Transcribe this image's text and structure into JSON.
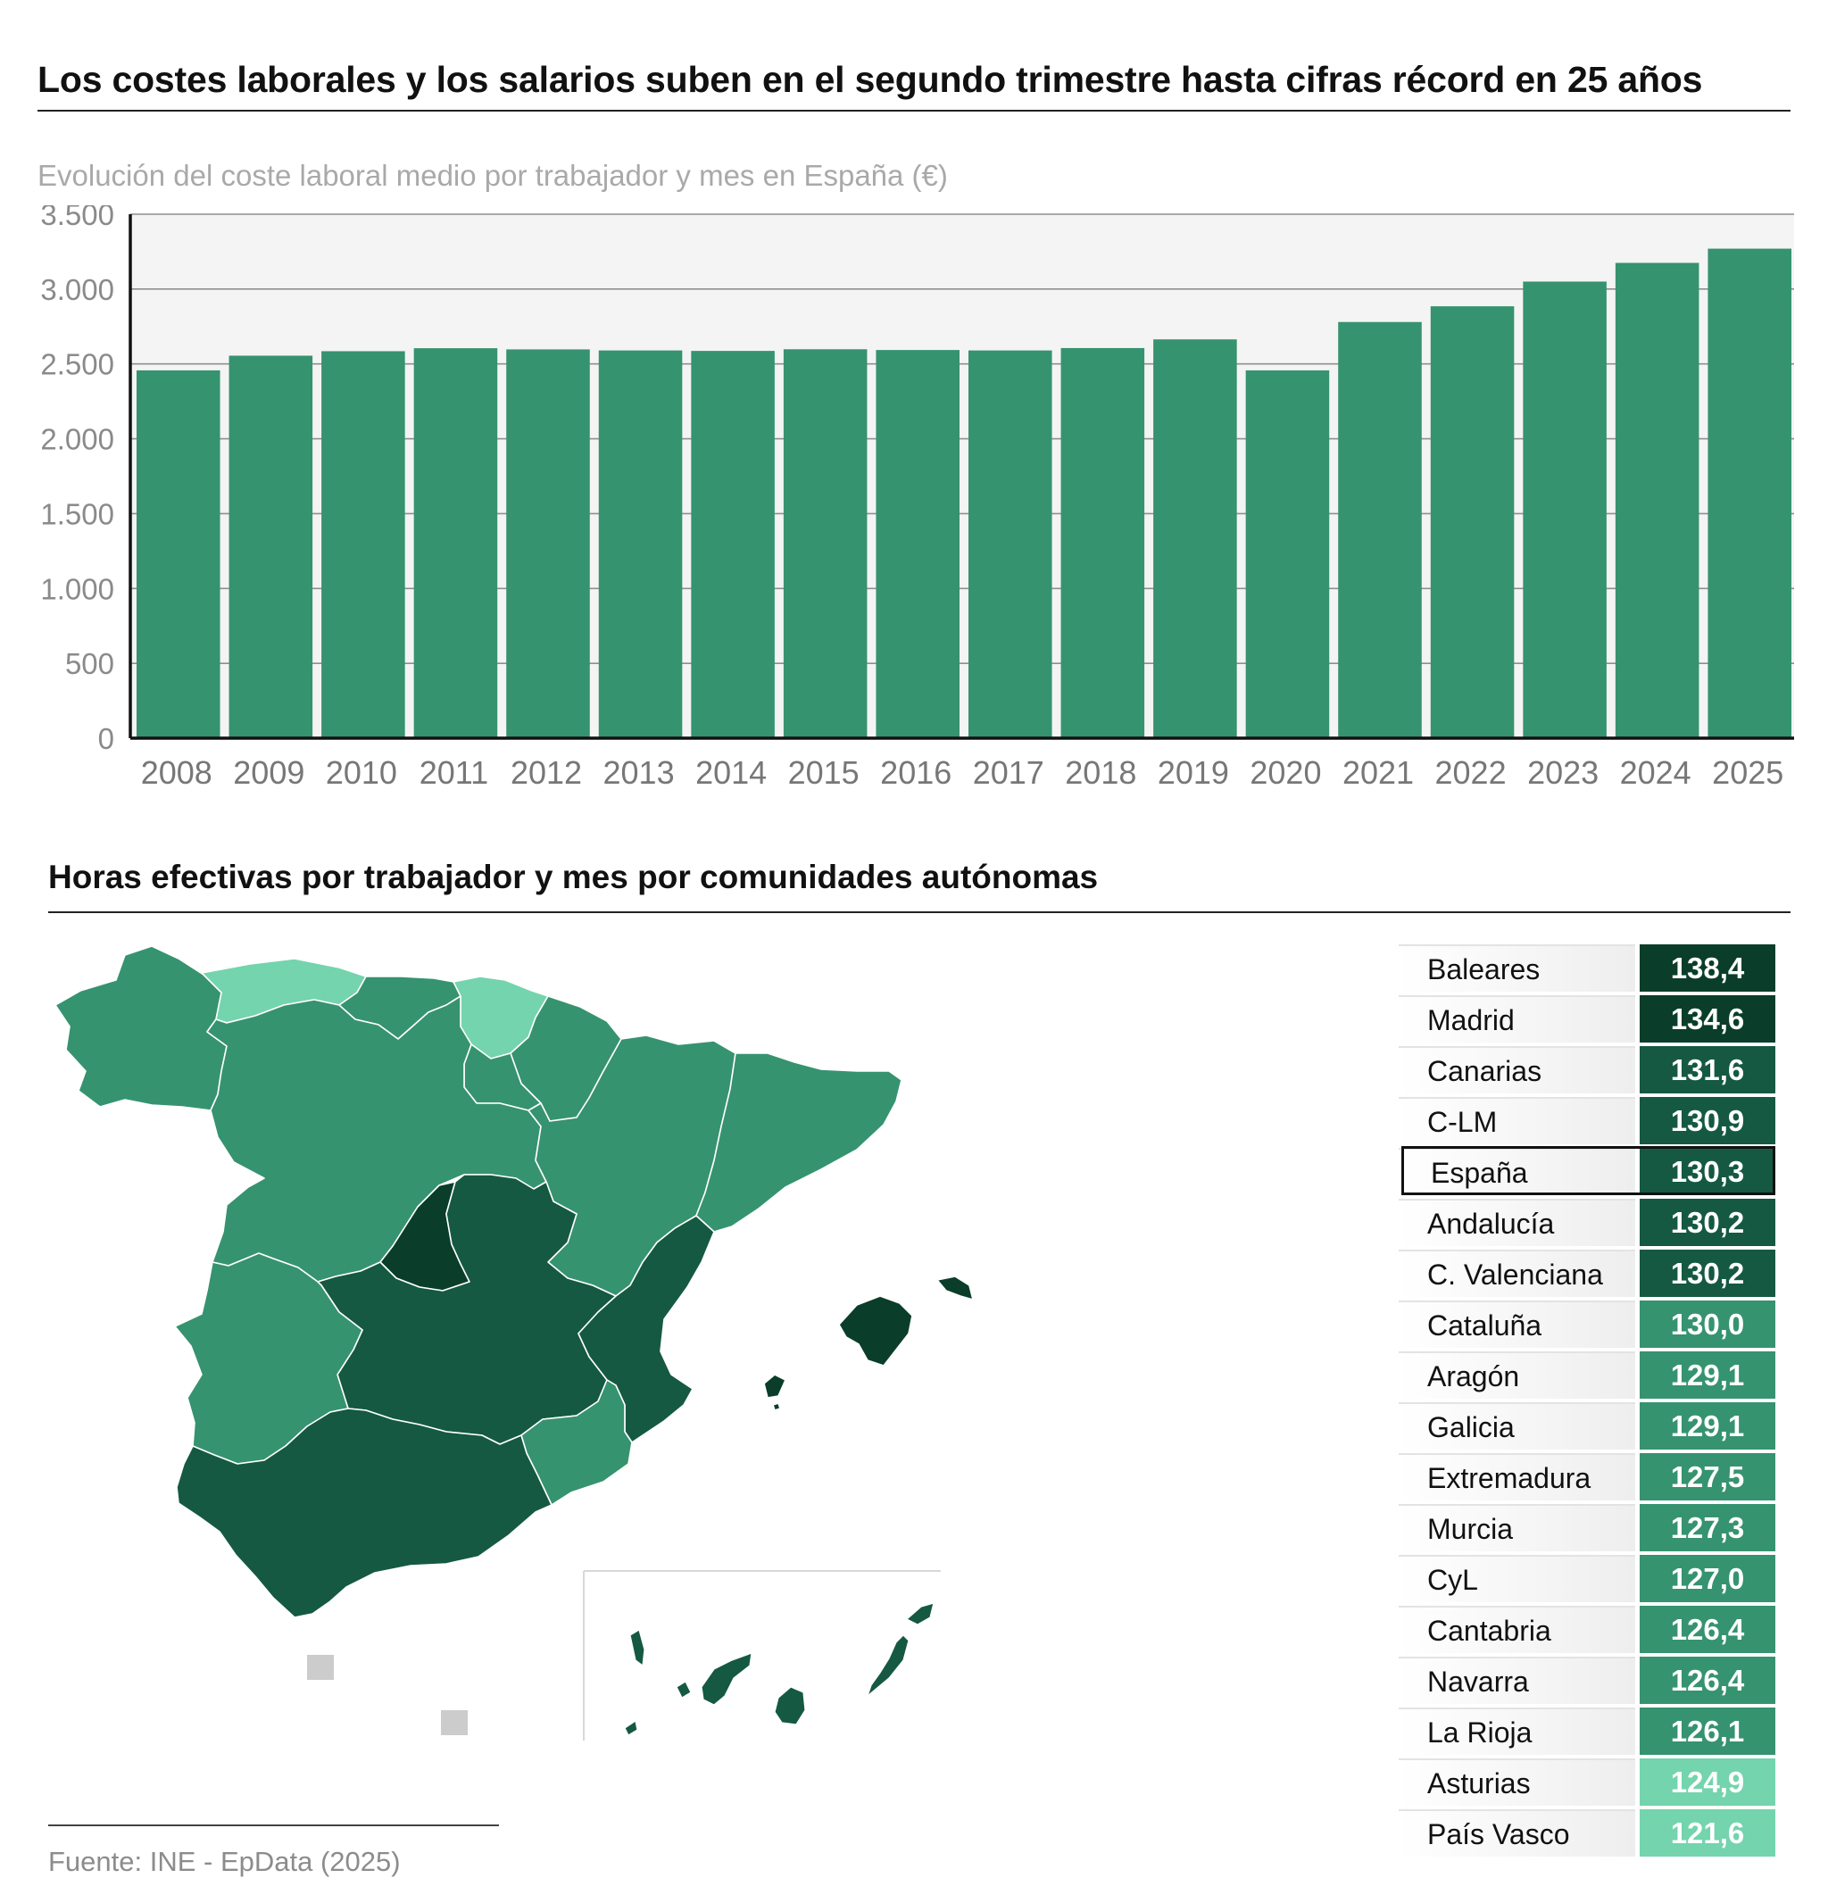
{
  "headline": "Los costes laborales y los salarios suben en el segundo trimestre hasta cifras récord en 25 años",
  "subtitle": "Evolución del coste laboral medio por trabajador y mes en España (€)",
  "map_title": "Horas efectivas por trabajador y mes por comunidades autónomas",
  "source": "Fuente: INE - EpData (2025)",
  "colors": {
    "bar": "#36936f",
    "plot_bg": "#f4f4f4",
    "gridline": "#8f8f8f",
    "tick_label": "#8a8a8a",
    "scale": [
      "#74d4ad",
      "#36936f",
      "#155942",
      "#0a3e2a"
    ]
  },
  "chart_data": {
    "type": "bar",
    "title": "Evolución del coste laboral medio por trabajador y mes en España (€)",
    "categories": [
      "2008",
      "2009",
      "2010",
      "2011",
      "2012",
      "2013",
      "2014",
      "2015",
      "2016",
      "2017",
      "2018",
      "2019",
      "2020",
      "2021",
      "2022",
      "2023",
      "2024",
      "2025"
    ],
    "values": [
      2457,
      2555,
      2585,
      2605,
      2597,
      2590,
      2587,
      2598,
      2593,
      2590,
      2606,
      2664,
      2457,
      2780,
      2885,
      3050,
      3175,
      3270
    ],
    "ylim": [
      0,
      3500
    ],
    "yticks": [
      0,
      500,
      1000,
      1500,
      2000,
      2500,
      3000,
      3500
    ],
    "ytick_labels": [
      "0",
      "500",
      "1.000",
      "1.500",
      "2.000",
      "2.500",
      "3.000",
      "3.500"
    ],
    "grid": true,
    "legend": "none"
  },
  "ranking": [
    {
      "region": "Baleares",
      "value": "138,4",
      "level": 3
    },
    {
      "region": "Madrid",
      "value": "134,6",
      "level": 3
    },
    {
      "region": "Canarias",
      "value": "131,6",
      "level": 2
    },
    {
      "region": "C-LM",
      "value": "130,9",
      "level": 2
    },
    {
      "region": "España",
      "value": "130,3",
      "level": 2,
      "highlight": true
    },
    {
      "region": "Andalucía",
      "value": "130,2",
      "level": 2
    },
    {
      "region": "C. Valenciana",
      "value": "130,2",
      "level": 2
    },
    {
      "region": "Cataluña",
      "value": "130,0",
      "level": 1
    },
    {
      "region": "Aragón",
      "value": "129,1",
      "level": 1
    },
    {
      "region": "Galicia",
      "value": "129,1",
      "level": 1
    },
    {
      "region": "Extremadura",
      "value": "127,5",
      "level": 1
    },
    {
      "region": "Murcia",
      "value": "127,3",
      "level": 1
    },
    {
      "region": "CyL",
      "value": "127,0",
      "level": 1
    },
    {
      "region": "Cantabria",
      "value": "126,4",
      "level": 1
    },
    {
      "region": "Navarra",
      "value": "126,4",
      "level": 1
    },
    {
      "region": "La Rioja",
      "value": "126,1",
      "level": 1
    },
    {
      "region": "Asturias",
      "value": "124,9",
      "level": 0
    },
    {
      "region": "País Vasco",
      "value": "121,6",
      "level": 0
    }
  ]
}
